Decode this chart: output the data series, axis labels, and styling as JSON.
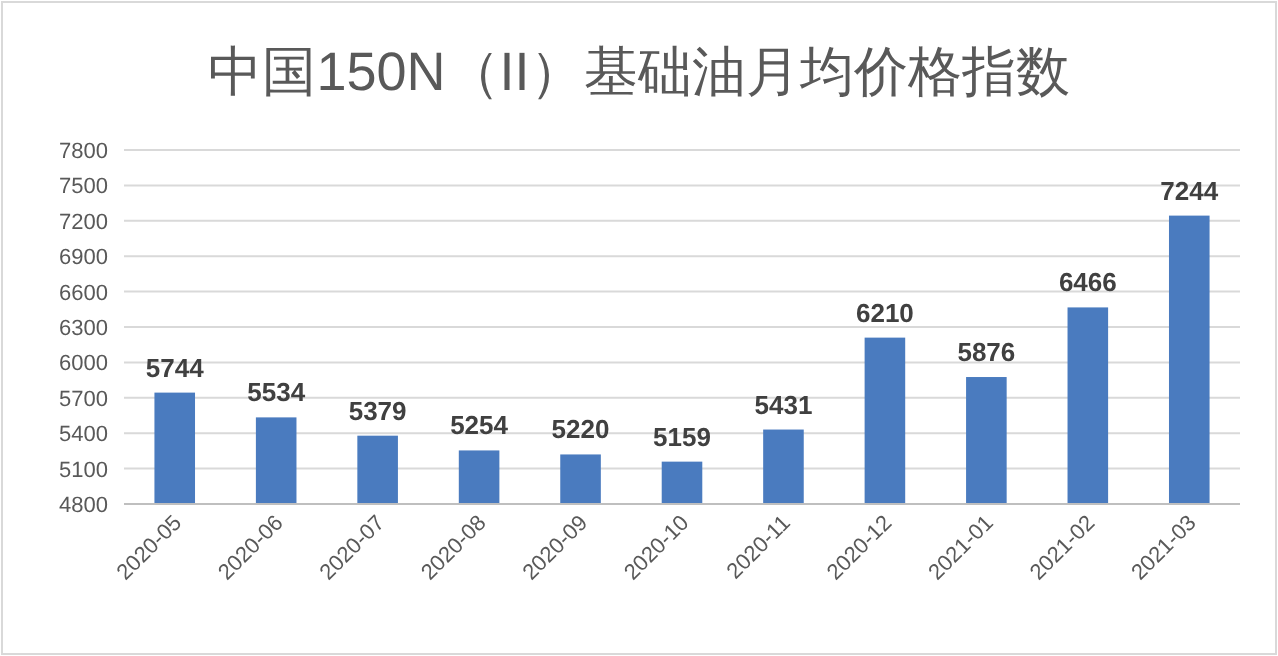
{
  "chart_data": {
    "type": "bar",
    "title": "中国150N（II）基础油月均价格指数",
    "categories": [
      "2020-05",
      "2020-06",
      "2020-07",
      "2020-08",
      "2020-09",
      "2020-10",
      "2020-11",
      "2020-12",
      "2021-01",
      "2021-02",
      "2021-03"
    ],
    "values": [
      5744,
      5534,
      5379,
      5254,
      5220,
      5159,
      5431,
      6210,
      5876,
      6466,
      7244
    ],
    "color": "#4a7bbf",
    "ylim": [
      4800,
      7800
    ],
    "yticks": [
      4800,
      5100,
      5400,
      5700,
      6000,
      6300,
      6600,
      6900,
      7200,
      7500,
      7800
    ],
    "grid": "y",
    "data_labels": true
  }
}
